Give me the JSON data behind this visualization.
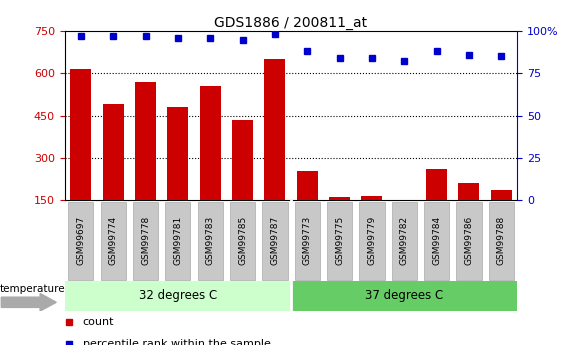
{
  "title": "GDS1886 / 200811_at",
  "categories": [
    "GSM99697",
    "GSM99774",
    "GSM99778",
    "GSM99781",
    "GSM99783",
    "GSM99785",
    "GSM99787",
    "GSM99773",
    "GSM99775",
    "GSM99779",
    "GSM99782",
    "GSM99784",
    "GSM99786",
    "GSM99788"
  ],
  "counts": [
    615,
    490,
    570,
    480,
    555,
    435,
    650,
    255,
    160,
    165,
    145,
    260,
    210,
    185
  ],
  "percentiles": [
    97,
    97,
    97,
    96,
    96,
    95,
    98,
    88,
    84,
    84,
    82,
    88,
    86,
    85
  ],
  "group1_label": "32 degrees C",
  "group2_label": "37 degrees C",
  "group1_count": 7,
  "group2_count": 7,
  "bar_color": "#cc0000",
  "dot_color": "#0000cc",
  "ylim_left": [
    150,
    750
  ],
  "ylim_right": [
    0,
    100
  ],
  "yticks_left": [
    150,
    300,
    450,
    600,
    750
  ],
  "yticks_right": [
    0,
    25,
    50,
    75,
    100
  ],
  "ytick_labels_right": [
    "0",
    "25",
    "50",
    "75",
    "100%"
  ],
  "grid_lines": [
    300,
    450,
    600
  ],
  "group1_color": "#ccffcc",
  "group2_color": "#66cc66",
  "temp_arrow_label": "temperature",
  "legend_count_label": "count",
  "legend_pct_label": "percentile rank within the sample",
  "background_color": "#ffffff",
  "tick_label_bg": "#c8c8c8",
  "tick_label_border": "#aaaaaa"
}
